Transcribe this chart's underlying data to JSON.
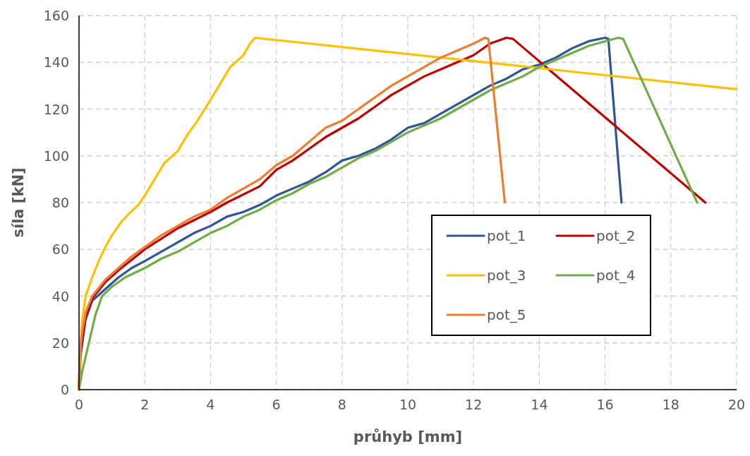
{
  "chart_data": {
    "type": "line",
    "xlabel": "průhyb [mm]",
    "ylabel": "síla [kN]",
    "xlim": [
      0,
      20
    ],
    "xticks": [
      0,
      2,
      4,
      6,
      8,
      10,
      12,
      14,
      16,
      18,
      20
    ],
    "ylim": [
      0,
      160
    ],
    "yticks": [
      0,
      20,
      40,
      60,
      80,
      100,
      120,
      140,
      160
    ],
    "grid": true,
    "legend": "right",
    "line_style": "solid",
    "series": [
      {
        "name": "pot_1",
        "color": "#2f5597",
        "x": [
          0,
          0.05,
          0.2,
          0.4,
          0.8,
          1.2,
          1.6,
          2,
          2.5,
          3,
          3.5,
          4,
          4.5,
          5,
          5.5,
          6,
          6.5,
          7,
          7.5,
          8,
          8.5,
          9,
          9.5,
          10,
          10.5,
          11,
          11.5,
          12,
          12.5,
          13,
          13.5,
          14,
          14.5,
          15,
          15.5,
          16,
          16.1,
          16.5
        ],
        "values": [
          0,
          15,
          30,
          38,
          43,
          48,
          52,
          55,
          59,
          63,
          67,
          70,
          74,
          76,
          79,
          83,
          86,
          89,
          93,
          98,
          100,
          103,
          107,
          112,
          114,
          118,
          122,
          126,
          130,
          133,
          137,
          139,
          142,
          146,
          149,
          150.5,
          150,
          80
        ]
      },
      {
        "name": "pot_2",
        "color": "#c00000",
        "x": [
          0,
          0.02,
          0.1,
          0.2,
          0.4,
          0.8,
          1.2,
          2,
          3,
          4,
          4.5,
          5.5,
          6,
          6.5,
          7,
          7.5,
          8,
          8.5,
          9,
          9.5,
          10,
          10.5,
          11,
          11.5,
          12,
          12.5,
          13,
          13.2,
          19.05
        ],
        "values": [
          0,
          12,
          22,
          31,
          39,
          46,
          51,
          60,
          69,
          76,
          80,
          87,
          94,
          98,
          103,
          108,
          112,
          116,
          121,
          126,
          130,
          134,
          137,
          140,
          143,
          148,
          150.5,
          150,
          80
        ]
      },
      {
        "name": "pot_3",
        "color": "#ffc000",
        "x": [
          0,
          0.05,
          0.1,
          0.2,
          0.4,
          0.6,
          0.8,
          1,
          1.3,
          1.5,
          1.8,
          2,
          2.3,
          2.6,
          3,
          3.3,
          3.6,
          4,
          4.3,
          4.6,
          5,
          5.2,
          5.35,
          20
        ],
        "values": [
          0,
          20,
          30,
          40,
          48,
          55,
          61,
          66,
          72,
          75,
          79,
          83,
          90,
          97,
          102,
          109,
          115,
          124,
          131,
          138,
          143,
          148,
          150.5,
          128.5
        ]
      },
      {
        "name": "pot_4",
        "color": "#70ad47",
        "x": [
          0,
          0.1,
          0.3,
          0.5,
          0.7,
          1,
          1.4,
          2,
          2.5,
          3,
          3.5,
          4,
          4.5,
          5,
          5.5,
          6,
          6.5,
          7,
          7.5,
          8,
          8.5,
          9,
          9.5,
          10,
          10.5,
          11,
          11.5,
          12,
          12.5,
          13,
          13.5,
          14,
          14.5,
          15,
          15.5,
          16,
          16.4,
          16.55,
          18.8
        ],
        "values": [
          0,
          8,
          20,
          32,
          40,
          44,
          48,
          52,
          56,
          59,
          63,
          67,
          70,
          74,
          77,
          81,
          84,
          88,
          91,
          95,
          99,
          102,
          106,
          110,
          113,
          116,
          120,
          124,
          128,
          131,
          134,
          138,
          141,
          144,
          147,
          149,
          150.5,
          150,
          80
        ]
      },
      {
        "name": "pot_5",
        "color": "#ed7d31",
        "x": [
          0,
          0.02,
          0.1,
          0.2,
          0.4,
          0.8,
          1.2,
          1.6,
          2,
          2.5,
          3,
          3.5,
          4,
          4.5,
          5,
          5.5,
          6,
          6.5,
          7,
          7.5,
          8,
          8.5,
          9,
          9.5,
          10,
          10.5,
          11,
          11.5,
          12,
          12.35,
          12.45,
          12.95
        ],
        "values": [
          0,
          15,
          25,
          33,
          40,
          47,
          52,
          57,
          61,
          66,
          70,
          74,
          77,
          82,
          86,
          90,
          96,
          100,
          106,
          112,
          115,
          120,
          125,
          130,
          134,
          138,
          142,
          145,
          148,
          150.5,
          150,
          80
        ]
      }
    ]
  }
}
